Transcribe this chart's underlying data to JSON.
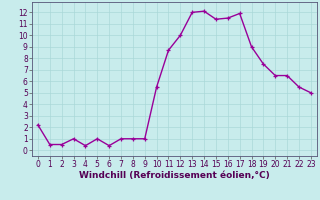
{
  "x": [
    0,
    1,
    2,
    3,
    4,
    5,
    6,
    7,
    8,
    9,
    10,
    11,
    12,
    13,
    14,
    15,
    16,
    17,
    18,
    19,
    20,
    21,
    22,
    23
  ],
  "y": [
    2.2,
    0.5,
    0.5,
    1.0,
    0.4,
    1.0,
    0.4,
    1.0,
    1.0,
    1.0,
    5.5,
    8.7,
    10.0,
    12.0,
    12.1,
    11.4,
    11.5,
    11.9,
    9.0,
    7.5,
    6.5,
    6.5,
    5.5,
    5.0
  ],
  "line_color": "#990099",
  "marker_color": "#990099",
  "bg_color": "#c8ecec",
  "grid_color": "#aad8d8",
  "xlabel": "Windchill (Refroidissement éolien,°C)",
  "xlim": [
    -0.5,
    23.5
  ],
  "ylim": [
    -0.5,
    12.9
  ],
  "yticks": [
    0,
    1,
    2,
    3,
    4,
    5,
    6,
    7,
    8,
    9,
    10,
    11,
    12
  ],
  "xticks": [
    0,
    1,
    2,
    3,
    4,
    5,
    6,
    7,
    8,
    9,
    10,
    11,
    12,
    13,
    14,
    15,
    16,
    17,
    18,
    19,
    20,
    21,
    22,
    23
  ],
  "tick_fontsize": 5.5,
  "xlabel_fontsize": 6.5,
  "line_width": 1.0,
  "marker_size": 2.5
}
